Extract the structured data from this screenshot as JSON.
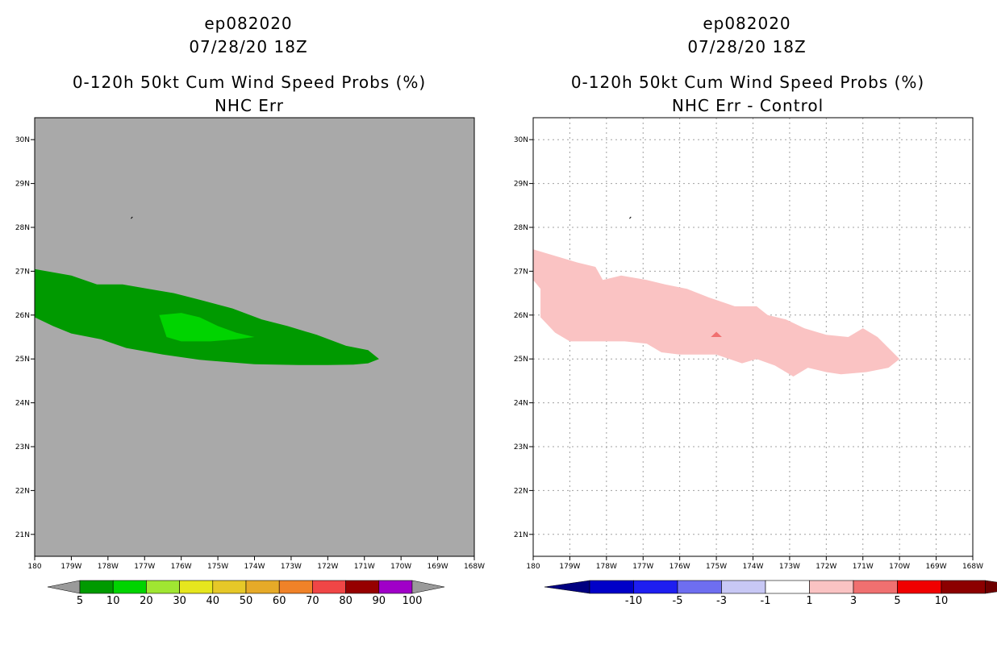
{
  "chart_data": [
    {
      "type": "contour_map",
      "storm_id": "ep082020",
      "datetime": "07/28/20 18Z",
      "title": "0-120h 50kt Cum Wind Speed Probs (%)",
      "subtitle": "NHC Err",
      "xlim": [
        -180,
        -168
      ],
      "ylim": [
        20.5,
        30.5
      ],
      "x_ticks": [
        -180,
        -179,
        -178,
        -177,
        -176,
        -175,
        -174,
        -173,
        -172,
        -171,
        -170,
        -169,
        -168
      ],
      "x_tick_labels": [
        "180",
        "179W",
        "178W",
        "177W",
        "176W",
        "175W",
        "174W",
        "173W",
        "172W",
        "171W",
        "170W",
        "169W",
        "168W"
      ],
      "y_ticks": [
        21,
        22,
        23,
        24,
        25,
        26,
        27,
        28,
        29,
        30
      ],
      "y_tick_labels": [
        "21N",
        "22N",
        "23N",
        "24N",
        "25N",
        "26N",
        "27N",
        "28N",
        "29N",
        "30N"
      ],
      "grid": false,
      "background": "#a9a9a9",
      "contours": [
        {
          "level": "5-10",
          "color": "#009a00",
          "points": [
            [
              -180,
              27.05
            ],
            [
              -179,
              26.9
            ],
            [
              -178.3,
              26.7
            ],
            [
              -177.6,
              26.7
            ],
            [
              -176.9,
              26.6
            ],
            [
              -176.2,
              26.5
            ],
            [
              -175.5,
              26.35
            ],
            [
              -174.6,
              26.15
            ],
            [
              -173.8,
              25.9
            ],
            [
              -173.1,
              25.75
            ],
            [
              -172.3,
              25.55
            ],
            [
              -171.5,
              25.3
            ],
            [
              -170.9,
              25.2
            ],
            [
              -170.6,
              25.0
            ],
            [
              -170.9,
              24.9
            ],
            [
              -171.3,
              24.87
            ],
            [
              -172,
              24.86
            ],
            [
              -172.8,
              24.86
            ],
            [
              -174,
              24.88
            ],
            [
              -175.5,
              24.98
            ],
            [
              -176.5,
              25.1
            ],
            [
              -177.5,
              25.25
            ],
            [
              -178.2,
              25.45
            ],
            [
              -179.0,
              25.58
            ],
            [
              -179.5,
              25.75
            ],
            [
              -180,
              25.95
            ]
          ]
        },
        {
          "level": "10-20",
          "color": "#00d400",
          "points": [
            [
              -176.6,
              26.0
            ],
            [
              -176.0,
              26.05
            ],
            [
              -175.5,
              25.95
            ],
            [
              -175.0,
              25.75
            ],
            [
              -174.5,
              25.6
            ],
            [
              -174.0,
              25.5
            ],
            [
              -174.5,
              25.45
            ],
            [
              -175.2,
              25.4
            ],
            [
              -176.0,
              25.4
            ],
            [
              -176.4,
              25.5
            ]
          ]
        }
      ],
      "colorbar": {
        "labels": [
          "5",
          "10",
          "20",
          "30",
          "40",
          "50",
          "60",
          "70",
          "80",
          "90",
          "100"
        ],
        "colors": [
          "#009a00",
          "#00d400",
          "#a0e632",
          "#e6e61e",
          "#e6c828",
          "#e6aa28",
          "#f08228",
          "#f04646",
          "#960000",
          "#a000c8"
        ],
        "left_cap": "#9a9a9a",
        "right_cap": "#9a9a9a"
      }
    },
    {
      "type": "contour_map",
      "storm_id": "ep082020",
      "datetime": "07/28/20 18Z",
      "title": "0-120h 50kt Cum Wind Speed Probs (%)",
      "subtitle": "NHC Err - Control",
      "xlim": [
        -180,
        -168
      ],
      "ylim": [
        20.5,
        30.5
      ],
      "x_ticks": [
        -180,
        -179,
        -178,
        -177,
        -176,
        -175,
        -174,
        -173,
        -172,
        -171,
        -170,
        -169,
        -168
      ],
      "x_tick_labels": [
        "180",
        "179W",
        "178W",
        "177W",
        "176W",
        "175W",
        "174W",
        "173W",
        "172W",
        "171W",
        "170W",
        "169W",
        "168W"
      ],
      "y_ticks": [
        21,
        22,
        23,
        24,
        25,
        26,
        27,
        28,
        29,
        30
      ],
      "y_tick_labels": [
        "21N",
        "22N",
        "23N",
        "24N",
        "25N",
        "26N",
        "27N",
        "28N",
        "29N",
        "30N"
      ],
      "grid": true,
      "background": "#ffffff",
      "contours": [
        {
          "level": "1-3",
          "color": "#fac3c3",
          "points": [
            [
              -180,
              27.5
            ],
            [
              -179.4,
              27.35
            ],
            [
              -178.8,
              27.2
            ],
            [
              -178.3,
              27.1
            ],
            [
              -178.1,
              26.8
            ],
            [
              -177.6,
              26.9
            ],
            [
              -176.9,
              26.8
            ],
            [
              -176.4,
              26.7
            ],
            [
              -175.8,
              26.6
            ],
            [
              -175.2,
              26.4
            ],
            [
              -174.5,
              26.2
            ],
            [
              -173.9,
              26.2
            ],
            [
              -173.6,
              26.0
            ],
            [
              -173.1,
              25.9
            ],
            [
              -172.6,
              25.7
            ],
            [
              -172.0,
              25.55
            ],
            [
              -171.4,
              25.5
            ],
            [
              -171.0,
              25.7
            ],
            [
              -170.6,
              25.5
            ],
            [
              -170.0,
              25.0
            ],
            [
              -170.3,
              24.8
            ],
            [
              -170.9,
              24.7
            ],
            [
              -171.6,
              24.65
            ],
            [
              -172.0,
              24.7
            ],
            [
              -172.5,
              24.8
            ],
            [
              -172.9,
              24.6
            ],
            [
              -173.4,
              24.85
            ],
            [
              -173.9,
              25.0
            ],
            [
              -174.3,
              24.9
            ],
            [
              -175.0,
              25.1
            ],
            [
              -176.0,
              25.1
            ],
            [
              -176.5,
              25.15
            ],
            [
              -176.9,
              25.35
            ],
            [
              -177.5,
              25.4
            ],
            [
              -178.3,
              25.4
            ],
            [
              -179.0,
              25.4
            ],
            [
              -179.4,
              25.6
            ],
            [
              -179.8,
              25.95
            ],
            [
              -179.8,
              26.6
            ],
            [
              -180,
              26.8
            ]
          ]
        },
        {
          "level": "3-5",
          "color": "#f07070",
          "points": [
            [
              -175.15,
              25.5
            ],
            [
              -174.85,
              25.5
            ],
            [
              -175.0,
              25.62
            ]
          ]
        }
      ],
      "colorbar": {
        "labels": [
          "-10",
          "-5",
          "-3",
          "-1",
          "1",
          "3",
          "5",
          "10"
        ],
        "colors": [
          "#0000c8",
          "#1e1ef0",
          "#6e6ef0",
          "#c8c8f5",
          "#ffffff",
          "#fac3c3",
          "#f07070",
          "#f00000",
          "#8c0000"
        ],
        "left_cap": "#000080",
        "right_cap": "#6e0000"
      }
    }
  ]
}
